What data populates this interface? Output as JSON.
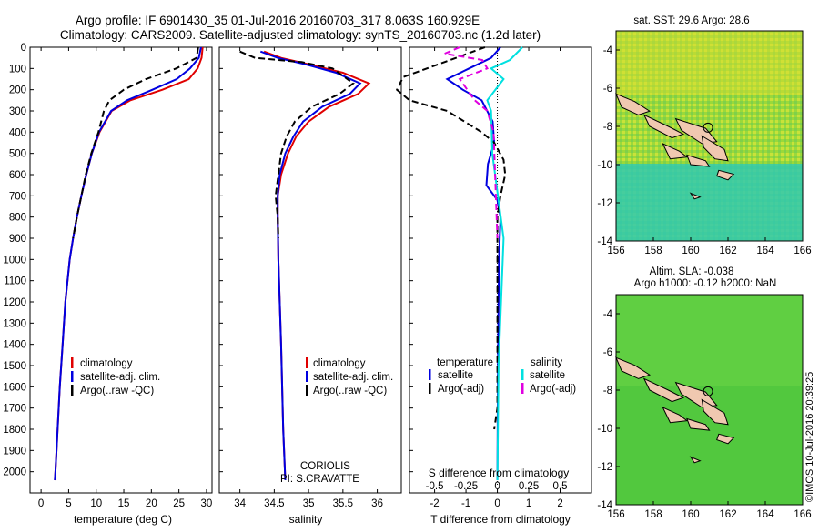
{
  "titles": {
    "line1": "Argo profile: IF 6901430_35 01-Jul-2016 20160703_317 8.063S 160.929E",
    "line2": "Climatology: CARS2009. Satellite-adjusted climatology: synTS_20160703.nc (1.2d later)"
  },
  "colors": {
    "climatology": "#e00000",
    "satellite": "#0000e0",
    "argo": "#000000",
    "salinity_satellite": "#00e0e0",
    "salinity_argo": "#e000e0"
  },
  "chart_data": [
    {
      "type": "line",
      "name": "temperature-profile",
      "xlabel": "temperature (deg C)",
      "ylim": [
        2100,
        0
      ],
      "xlim": [
        -2,
        31
      ],
      "xticks": [
        0,
        5,
        10,
        15,
        20,
        25,
        30
      ],
      "yticks": [
        0,
        100,
        200,
        300,
        400,
        500,
        600,
        700,
        800,
        900,
        1000,
        1100,
        1200,
        1300,
        1400,
        1500,
        1600,
        1700,
        1800,
        1900,
        2000
      ],
      "legend": [
        "climatology",
        "satellite-adj. clim.",
        "Argo(..raw -QC)"
      ],
      "series": [
        {
          "name": "climatology",
          "points": [
            [
              29.3,
              0
            ],
            [
              29.1,
              50
            ],
            [
              28.4,
              100
            ],
            [
              26.8,
              150
            ],
            [
              22.0,
              200
            ],
            [
              16.2,
              250
            ],
            [
              12.8,
              300
            ],
            [
              10.6,
              400
            ],
            [
              9.2,
              500
            ],
            [
              8.2,
              600
            ],
            [
              7.3,
              700
            ],
            [
              6.5,
              800
            ],
            [
              5.8,
              900
            ],
            [
              5.2,
              1000
            ],
            [
              4.4,
              1200
            ],
            [
              3.9,
              1400
            ],
            [
              3.4,
              1600
            ],
            [
              3.0,
              1800
            ],
            [
              2.6,
              2000
            ],
            [
              2.5,
              2040
            ]
          ]
        },
        {
          "name": "satellite-adj. clim.",
          "points": [
            [
              29.0,
              0
            ],
            [
              28.6,
              50
            ],
            [
              27.0,
              100
            ],
            [
              24.6,
              150
            ],
            [
              20.2,
              200
            ],
            [
              15.6,
              250
            ],
            [
              12.7,
              300
            ],
            [
              10.5,
              400
            ],
            [
              9.2,
              500
            ],
            [
              8.2,
              600
            ],
            [
              7.3,
              700
            ],
            [
              6.5,
              800
            ],
            [
              5.8,
              900
            ],
            [
              5.2,
              1000
            ],
            [
              4.4,
              1200
            ],
            [
              3.9,
              1400
            ],
            [
              3.4,
              1600
            ],
            [
              3.0,
              1800
            ],
            [
              2.6,
              2000
            ],
            [
              2.5,
              2040
            ]
          ]
        },
        {
          "name": "Argo(..raw -QC)",
          "points": [
            [
              28.5,
              0
            ],
            [
              28.2,
              50
            ],
            [
              24.5,
              100
            ],
            [
              19.0,
              150
            ],
            [
              15.0,
              200
            ],
            [
              12.4,
              250
            ],
            [
              11.4,
              300
            ],
            [
              10.4,
              400
            ],
            [
              9.1,
              500
            ],
            [
              8.1,
              600
            ],
            [
              7.3,
              700
            ],
            [
              6.5,
              800
            ],
            [
              5.8,
              900
            ]
          ]
        }
      ]
    },
    {
      "type": "line",
      "name": "salinity-profile",
      "xlabel": "salinity",
      "ylim": [
        2100,
        0
      ],
      "xlim": [
        33.7,
        36.35
      ],
      "xticks": [
        34,
        34.5,
        35,
        35.5,
        36
      ],
      "legend": [
        "climatology",
        "satellite-adj. clim.",
        "Argo(..raw -QC)"
      ],
      "annotation": [
        "CORIOLIS",
        "PI: S.CRAVATTE"
      ],
      "series": [
        {
          "name": "climatology",
          "points": [
            [
              34.35,
              20
            ],
            [
              34.6,
              50
            ],
            [
              35.0,
              80
            ],
            [
              35.5,
              120
            ],
            [
              35.88,
              170
            ],
            [
              35.72,
              220
            ],
            [
              35.3,
              280
            ],
            [
              35.0,
              350
            ],
            [
              34.82,
              420
            ],
            [
              34.7,
              500
            ],
            [
              34.6,
              600
            ],
            [
              34.55,
              700
            ],
            [
              34.55,
              800
            ],
            [
              34.56,
              1000
            ],
            [
              34.6,
              1400
            ],
            [
              34.63,
              1800
            ],
            [
              34.66,
              2040
            ]
          ]
        },
        {
          "name": "satellite-adj. clim.",
          "points": [
            [
              34.3,
              20
            ],
            [
              34.55,
              50
            ],
            [
              34.95,
              80
            ],
            [
              35.4,
              120
            ],
            [
              35.75,
              170
            ],
            [
              35.6,
              220
            ],
            [
              35.2,
              280
            ],
            [
              34.92,
              350
            ],
            [
              34.78,
              420
            ],
            [
              34.66,
              500
            ],
            [
              34.58,
              600
            ],
            [
              34.55,
              700
            ],
            [
              34.55,
              800
            ],
            [
              34.56,
              1000
            ],
            [
              34.6,
              1400
            ],
            [
              34.63,
              1800
            ],
            [
              34.66,
              2040
            ]
          ]
        },
        {
          "name": "Argo(..raw -QC)",
          "points": [
            [
              34.0,
              20
            ],
            [
              34.22,
              50
            ],
            [
              34.9,
              70
            ],
            [
              35.35,
              100
            ],
            [
              35.65,
              170
            ],
            [
              35.45,
              220
            ],
            [
              35.05,
              280
            ],
            [
              34.8,
              350
            ],
            [
              34.68,
              420
            ],
            [
              34.6,
              500
            ],
            [
              34.56,
              600
            ],
            [
              34.52,
              700
            ],
            [
              34.55,
              800
            ],
            [
              34.56,
              900
            ]
          ]
        }
      ]
    },
    {
      "type": "line",
      "name": "difference-profile",
      "xlabel": "T difference from climatology",
      "xlabel2": "S difference from climatology",
      "ylim": [
        2100,
        0
      ],
      "xlim": [
        -2.8,
        3.0
      ],
      "xticks": [
        -2,
        -1,
        0,
        1,
        2
      ],
      "xticks2": [
        "-0.5",
        "-0.25",
        "0",
        "0.25",
        "0.5"
      ],
      "legend_temperature": [
        "temperature",
        "satellite",
        "Argo(-adj)"
      ],
      "legend_salinity": [
        "salinity",
        "satellite",
        "Argo(-adj)"
      ],
      "series": [
        {
          "name": "temperature satellite",
          "points": [
            [
              0.1,
              0
            ],
            [
              -0.2,
              50
            ],
            [
              -0.9,
              100
            ],
            [
              -1.6,
              150
            ],
            [
              -1.1,
              200
            ],
            [
              -0.5,
              250
            ],
            [
              -0.15,
              350
            ],
            [
              -0.1,
              450
            ],
            [
              -0.3,
              550
            ],
            [
              -0.35,
              650
            ],
            [
              0.0,
              720
            ],
            [
              0.1,
              800
            ],
            [
              0.05,
              1000
            ],
            [
              0.02,
              1500
            ],
            [
              0.0,
              2040
            ]
          ]
        },
        {
          "name": "temperature Argo(-adj)",
          "points": [
            [
              -0.4,
              0
            ],
            [
              -1.5,
              60
            ],
            [
              -3.0,
              140
            ],
            [
              -3.2,
              200
            ],
            [
              -2.8,
              250
            ],
            [
              -1.6,
              300
            ],
            [
              -0.5,
              400
            ],
            [
              -0.1,
              450
            ],
            [
              0.2,
              530
            ],
            [
              0.25,
              600
            ],
            [
              0.1,
              700
            ],
            [
              0.0,
              800
            ],
            [
              0.0,
              1700
            ],
            [
              -0.1,
              1800
            ]
          ]
        },
        {
          "name": "salinity satellite",
          "points": [
            [
              0.2,
              0
            ],
            [
              0.1,
              60
            ],
            [
              -0.05,
              100
            ],
            [
              0.05,
              150
            ],
            [
              -0.08,
              250
            ],
            [
              -0.05,
              300
            ],
            [
              -0.04,
              500
            ],
            [
              0.05,
              900
            ],
            [
              0.01,
              1500
            ],
            [
              0.0,
              2040
            ]
          ]
        },
        {
          "name": "salinity Argo(-adj)",
          "points": [
            [
              -0.3,
              0
            ],
            [
              -0.42,
              30
            ],
            [
              -0.12,
              60
            ],
            [
              -0.08,
              100
            ],
            [
              -0.3,
              150
            ],
            [
              -0.18,
              250
            ],
            [
              -0.08,
              300
            ],
            [
              -0.03,
              400
            ],
            [
              0.0,
              900
            ]
          ]
        }
      ]
    },
    {
      "type": "heatmap",
      "name": "sst-map",
      "title": "sat. SST: 29.6 Argo: 28.6",
      "xticks": [
        156,
        158,
        160,
        162,
        164,
        166
      ],
      "yticks": [
        -4,
        -6,
        -8,
        -10,
        -12,
        -14
      ]
    },
    {
      "type": "heatmap",
      "name": "sla-map",
      "title": "Altim. SLA: -0.038",
      "subtitle": "Argo h1000: -0.12 h2000: NaN",
      "xticks": [
        156,
        158,
        160,
        162,
        164,
        166
      ],
      "yticks": [
        -4,
        -6,
        -8,
        -10,
        -12,
        -14
      ]
    }
  ],
  "watermark": "©IMOS 10-Jul-2016 20:39:25"
}
